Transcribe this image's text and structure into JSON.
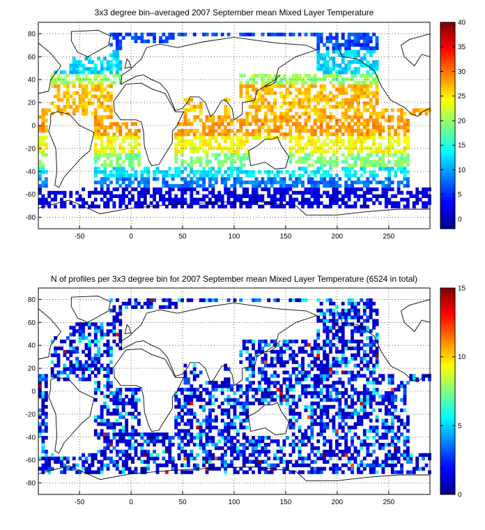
{
  "chart_data": [
    {
      "type": "heatmap",
      "title": "3x3 degree bin–averaged 2007 September mean Mixed Layer Temperature",
      "xlim": [
        -90,
        290
      ],
      "ylim": [
        -90,
        90
      ],
      "x_ticks": [
        -50,
        0,
        50,
        100,
        150,
        200,
        250
      ],
      "y_ticks": [
        80,
        60,
        40,
        20,
        0,
        -20,
        -40,
        -60,
        -80
      ],
      "colorbar": {
        "min": -2,
        "max": 40,
        "ticks": [
          40,
          35,
          30,
          25,
          20,
          15,
          10,
          5,
          0
        ],
        "colormap": "jet"
      },
      "grid": true,
      "bin_size_deg": 3,
      "value_bands": [
        {
          "lat_min": 65,
          "lat_max": 80,
          "value": 6
        },
        {
          "lat_min": 45,
          "lat_max": 65,
          "value": 12
        },
        {
          "lat_min": 35,
          "lat_max": 45,
          "value": 20
        },
        {
          "lat_min": 10,
          "lat_max": 35,
          "value": 27
        },
        {
          "lat_min": -10,
          "lat_max": 10,
          "value": 28
        },
        {
          "lat_min": -25,
          "lat_max": -10,
          "value": 24
        },
        {
          "lat_min": -35,
          "lat_max": -25,
          "value": 19
        },
        {
          "lat_min": -45,
          "lat_max": -35,
          "value": 13
        },
        {
          "lat_min": -55,
          "lat_max": -45,
          "value": 8
        },
        {
          "lat_min": -75,
          "lat_max": -55,
          "value": 2
        }
      ]
    },
    {
      "type": "heatmap",
      "title": "N of profiles per 3x3 degree bin for 2007 September mean Mixed Layer Temperature  (6524 in total)",
      "xlim": [
        -90,
        290
      ],
      "ylim": [
        -90,
        90
      ],
      "x_ticks": [
        -50,
        0,
        50,
        100,
        150,
        200,
        250
      ],
      "y_ticks": [
        80,
        60,
        40,
        20,
        0,
        -20,
        -40,
        -60,
        -80
      ],
      "colorbar": {
        "min": 0,
        "max": 15,
        "ticks": [
          15,
          10,
          5,
          0
        ],
        "colormap": "jet"
      },
      "grid": true,
      "bin_size_deg": 3,
      "typical_count": 2,
      "max_count": 15,
      "total_profiles": 6524
    }
  ],
  "colors": {
    "land_outline": "#000000",
    "background": "#ffffff"
  }
}
